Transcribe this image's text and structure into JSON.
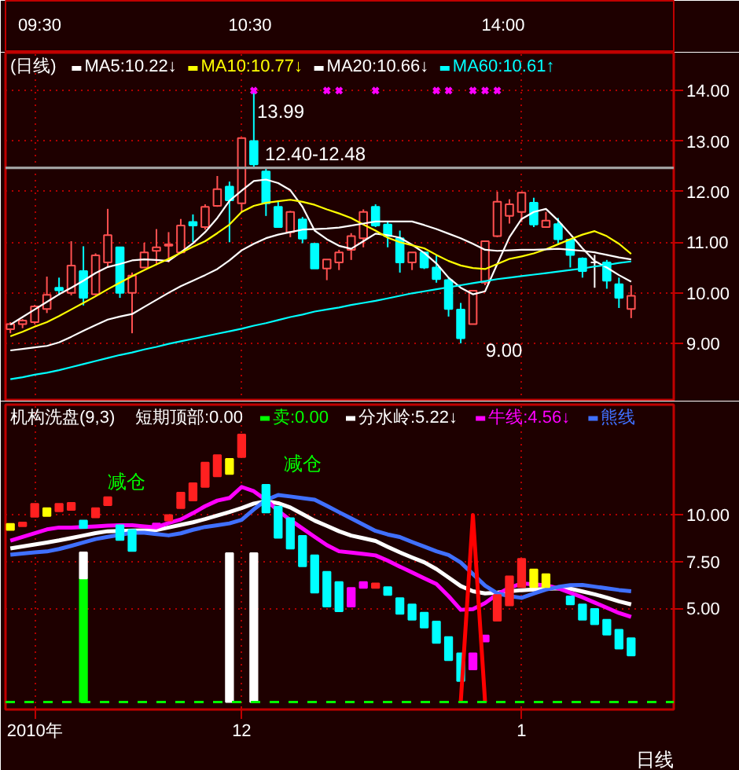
{
  "chart_data": [
    {
      "type": "candlestick",
      "title": "(日线)",
      "categories": [
        null,
        null,
        null,
        null,
        null,
        null,
        null,
        null,
        null,
        null,
        null,
        null,
        null,
        null,
        null,
        null,
        null,
        null,
        null,
        null,
        null,
        null,
        null,
        null,
        null,
        null,
        null,
        null,
        null,
        null,
        null,
        null,
        null,
        null,
        null,
        null,
        null,
        null,
        null,
        null,
        null,
        null,
        null,
        null,
        null,
        null,
        null,
        null,
        null,
        null,
        null,
        null
      ],
      "ohlc": [
        [
          9.28,
          9.42,
          9.2,
          9.38
        ],
        [
          9.38,
          9.48,
          9.3,
          9.45
        ],
        [
          9.42,
          9.76,
          9.38,
          9.73
        ],
        [
          9.68,
          10.32,
          9.6,
          9.96
        ],
        [
          10.1,
          10.3,
          9.95,
          10.05
        ],
        [
          10.0,
          11.02,
          9.95,
          10.54
        ],
        [
          10.43,
          10.92,
          9.75,
          9.9
        ],
        [
          9.97,
          10.78,
          9.95,
          10.74
        ],
        [
          10.6,
          11.66,
          10.5,
          11.14
        ],
        [
          10.9,
          10.9,
          9.9,
          10.0
        ],
        [
          10.0,
          10.4,
          9.2,
          10.34
        ],
        [
          10.5,
          10.99,
          10.5,
          10.8
        ],
        [
          10.83,
          11.26,
          10.55,
          10.9
        ],
        [
          10.93,
          11.2,
          10.6,
          10.96
        ],
        [
          10.8,
          11.46,
          10.8,
          11.33
        ],
        [
          11.4,
          11.55,
          11.0,
          11.33
        ],
        [
          11.3,
          11.75,
          11.25,
          11.7
        ],
        [
          11.72,
          12.31,
          11.7,
          12.05
        ],
        [
          12.1,
          12.2,
          11.0,
          11.83
        ],
        [
          11.77,
          13.06,
          11.6,
          13.06
        ],
        [
          13.0,
          13.99,
          12.45,
          12.54
        ],
        [
          12.4,
          12.48,
          11.52,
          11.77
        ],
        [
          11.7,
          11.8,
          11.3,
          11.3
        ],
        [
          11.2,
          11.62,
          11.1,
          11.6
        ],
        [
          11.45,
          11.5,
          10.98,
          11.07
        ],
        [
          10.97,
          10.98,
          10.48,
          10.48
        ],
        [
          10.48,
          10.66,
          10.25,
          10.66
        ],
        [
          10.6,
          10.85,
          10.45,
          10.8
        ],
        [
          10.85,
          11.18,
          10.65,
          11.12
        ],
        [
          11.08,
          11.65,
          10.9,
          11.6
        ],
        [
          11.7,
          11.75,
          11.3,
          11.33
        ],
        [
          11.35,
          11.4,
          10.9,
          11.12
        ],
        [
          11.08,
          11.23,
          10.4,
          10.6
        ],
        [
          10.6,
          10.8,
          10.45,
          10.8
        ],
        [
          10.8,
          10.8,
          10.47,
          10.5
        ],
        [
          10.5,
          10.75,
          10.2,
          10.27
        ],
        [
          10.25,
          10.3,
          9.53,
          9.68
        ],
        [
          9.67,
          9.8,
          9.0,
          9.1
        ],
        [
          9.38,
          10.04,
          9.38,
          10.04
        ],
        [
          10.2,
          11.02,
          10.15,
          11.02
        ],
        [
          11.12,
          12.0,
          11.1,
          11.8
        ],
        [
          11.52,
          11.85,
          11.37,
          11.75
        ],
        [
          11.6,
          12.0,
          11.4,
          11.98
        ],
        [
          11.78,
          11.88,
          11.3,
          11.35
        ],
        [
          11.3,
          11.6,
          11.3,
          11.43
        ],
        [
          11.36,
          11.48,
          10.95,
          11.06
        ],
        [
          11.05,
          11.05,
          10.5,
          10.75
        ],
        [
          10.68,
          10.7,
          10.3,
          10.43
        ],
        [
          10.6,
          10.75,
          10.1,
          10.6
        ],
        [
          10.6,
          10.65,
          10.08,
          10.24
        ],
        [
          10.17,
          10.3,
          9.7,
          9.9
        ],
        [
          9.68,
          10.15,
          9.5,
          9.94
        ]
      ],
      "series": [
        {
          "name": "MA5:10.22↓",
          "type": "line",
          "color": "#ffffff",
          "values": [
            9.37,
            9.52,
            9.67,
            9.82,
            9.97,
            10.1,
            10.24,
            10.39,
            10.51,
            10.57,
            10.64,
            10.66,
            10.65,
            10.63,
            10.8,
            10.98,
            11.2,
            11.48,
            11.82,
            12.02,
            12.21,
            12.24,
            12.17,
            12.03,
            11.7,
            11.23,
            11.06,
            10.93,
            10.87,
            11.02,
            11.17,
            11.14,
            11.09,
            10.95,
            10.79,
            10.58,
            10.3,
            10.1,
            9.97,
            10.03,
            10.57,
            11.1,
            11.46,
            11.6,
            11.66,
            11.43,
            11.16,
            10.88,
            10.63,
            10.5,
            10.35,
            10.22
          ]
        },
        {
          "name": "MA10:10.77↓",
          "type": "line",
          "color": "#ffff00",
          "values": [
            9.14,
            9.23,
            9.33,
            9.42,
            9.54,
            9.67,
            9.8,
            9.93,
            10.07,
            10.2,
            10.33,
            10.45,
            10.56,
            10.67,
            10.79,
            10.91,
            11.02,
            11.18,
            11.35,
            11.6,
            11.72,
            11.78,
            11.81,
            11.84,
            11.8,
            11.74,
            11.65,
            11.57,
            11.48,
            11.35,
            11.23,
            11.09,
            11.0,
            10.94,
            10.88,
            10.75,
            10.63,
            10.54,
            10.49,
            10.47,
            10.57,
            10.67,
            10.72,
            10.78,
            10.86,
            10.96,
            11.06,
            11.15,
            11.22,
            11.12,
            10.97,
            10.77
          ]
        },
        {
          "name": "MA20:10.66↓",
          "type": "line",
          "color": "#ffffff",
          "values": [
            8.86,
            8.89,
            8.92,
            8.95,
            9.02,
            9.13,
            9.25,
            9.36,
            9.47,
            9.53,
            9.58,
            9.72,
            9.86,
            10.0,
            10.13,
            10.24,
            10.35,
            10.47,
            10.64,
            10.84,
            10.97,
            11.08,
            11.15,
            11.2,
            11.25,
            11.26,
            11.27,
            11.29,
            11.33,
            11.37,
            11.41,
            11.41,
            11.41,
            11.41,
            11.34,
            11.26,
            11.17,
            11.08,
            10.97,
            10.85,
            10.83,
            10.84,
            10.85,
            10.85,
            10.86,
            10.87,
            10.85,
            10.83,
            10.8,
            10.75,
            10.7,
            10.66
          ]
        },
        {
          "name": "MA60:10.61↑",
          "type": "line",
          "color": "#00ffff",
          "values": [
            8.29,
            8.33,
            8.38,
            8.42,
            8.47,
            8.53,
            8.59,
            8.65,
            8.71,
            8.77,
            8.82,
            8.88,
            8.93,
            8.99,
            9.04,
            9.09,
            9.14,
            9.19,
            9.24,
            9.29,
            9.35,
            9.4,
            9.46,
            9.52,
            9.57,
            9.63,
            9.67,
            9.71,
            9.76,
            9.8,
            9.84,
            9.89,
            9.94,
            9.99,
            10.03,
            10.07,
            10.11,
            10.15,
            10.19,
            10.23,
            10.27,
            10.3,
            10.33,
            10.36,
            10.39,
            10.42,
            10.45,
            10.48,
            10.52,
            10.55,
            10.59,
            10.62
          ]
        },
        {
          "type": "scatter",
          "marker": "cross",
          "color": "#ff00ff",
          "values": [
            null,
            null,
            null,
            null,
            null,
            null,
            null,
            null,
            null,
            null,
            null,
            null,
            null,
            null,
            null,
            null,
            null,
            null,
            null,
            null,
            14.0,
            null,
            null,
            null,
            null,
            null,
            14.0,
            14.0,
            null,
            null,
            14.0,
            null,
            null,
            null,
            null,
            14.0,
            14.0,
            null,
            14.0,
            14.0,
            14.0,
            null,
            null,
            null,
            null,
            null,
            null,
            null,
            null,
            null,
            null,
            null
          ]
        }
      ],
      "ylim": [
        7.85,
        14.75
      ],
      "yticks": [
        {
          "value": 9,
          "label": "9.00"
        },
        {
          "value": 10,
          "label": "10.00"
        },
        {
          "value": 11,
          "label": "11.00"
        },
        {
          "value": 12,
          "label": "12.00"
        },
        {
          "value": 13,
          "label": "13.00"
        },
        {
          "value": 14,
          "label": "14.00"
        }
      ],
      "grid": true,
      "legend": "top left",
      "tick_labels": "y",
      "ref_lines": [
        {
          "axis": "y",
          "value": 12.47,
          "color": "#a0a0a0"
        }
      ],
      "annotations": [
        "09:30",
        "10:30",
        "14:00",
        "13.99",
        "12.40-12.48",
        "9.00"
      ]
    },
    {
      "type": "bar",
      "title": "机构洗盘(9,3)",
      "categories": [
        null,
        null,
        "2010年",
        null,
        null,
        null,
        null,
        null,
        null,
        null,
        null,
        null,
        null,
        null,
        null,
        null,
        null,
        null,
        null,
        "12",
        null,
        null,
        null,
        null,
        null,
        null,
        null,
        null,
        null,
        null,
        null,
        null,
        null,
        null,
        null,
        null,
        null,
        null,
        null,
        null,
        null,
        null,
        "1",
        null,
        null,
        null,
        null,
        null,
        null,
        null,
        null,
        null
      ],
      "ref_lines": [
        {
          "axis": "y",
          "value": 0,
          "label": "卖:0.00",
          "color": "#00ff00",
          "line_style": "dashed"
        }
      ],
      "series": [
        {
          "name": "分水岭:5.22↓",
          "type": "line",
          "color": "#ffffff",
          "values": [
            8.21,
            8.32,
            8.42,
            8.53,
            8.64,
            8.77,
            8.9,
            9.03,
            9.13,
            9.15,
            9.17,
            9.18,
            9.2,
            9.33,
            9.47,
            9.61,
            9.78,
            9.97,
            10.16,
            10.37,
            10.61,
            10.74,
            10.63,
            10.4,
            10.05,
            9.7,
            9.42,
            9.13,
            8.9,
            8.76,
            8.61,
            8.3,
            8.0,
            7.73,
            7.47,
            7.11,
            6.66,
            6.2,
            5.92,
            5.81,
            5.85,
            5.92,
            5.98,
            6.02,
            6.05,
            6.08,
            6.06,
            5.91,
            5.76,
            5.58,
            5.38,
            5.22
          ]
        },
        {
          "name": "牛线:4.56↓",
          "type": "line",
          "color": "#ff00ff",
          "values": [
            8.63,
            8.83,
            9.03,
            9.23,
            9.33,
            9.33,
            9.36,
            9.39,
            9.43,
            9.45,
            9.45,
            9.39,
            9.34,
            9.57,
            9.76,
            10.1,
            10.47,
            10.77,
            10.91,
            11.5,
            11.27,
            10.8,
            10.23,
            9.73,
            9.28,
            8.83,
            8.39,
            8.06,
            7.99,
            7.92,
            7.84,
            7.56,
            7.24,
            6.93,
            6.62,
            6.31,
            5.66,
            4.93,
            4.97,
            5.29,
            5.76,
            6.11,
            6.34,
            6.29,
            6.24,
            6.08,
            5.84,
            5.6,
            5.32,
            5.04,
            4.76,
            4.55
          ]
        },
        {
          "name": "熊线",
          "type": "line",
          "color": "#4070ff",
          "values": [
            7.88,
            7.94,
            8.0,
            8.05,
            8.18,
            8.35,
            8.53,
            8.71,
            8.83,
            8.94,
            9.05,
            9.05,
            8.98,
            8.91,
            9.02,
            9.21,
            9.36,
            9.45,
            9.55,
            9.74,
            10.3,
            10.8,
            11.07,
            10.99,
            10.9,
            10.82,
            10.49,
            10.15,
            9.82,
            9.48,
            9.15,
            8.96,
            8.82,
            8.56,
            8.31,
            8.06,
            7.86,
            7.46,
            6.84,
            6.22,
            5.81,
            5.66,
            5.57,
            5.8,
            6.01,
            6.15,
            6.25,
            6.26,
            6.17,
            6.08,
            5.99,
            5.92
          ]
        },
        {
          "type": "bar",
          "base": [
            9.2,
            9.4,
            9.9,
            9.95,
            10.2,
            10.27,
            9.3,
            9.87,
            10.52,
            8.66,
            8.08,
            null,
            9.4,
            9.7,
            10.37,
            10.77,
            11.5,
            12.07,
            12.19,
            13.1,
            null,
            10.13,
            8.78,
            8.2,
            7.26,
            5.85,
            5.1,
            4.85,
            5.1,
            6.1,
            6.1,
            5.72,
            4.72,
            4.4,
            3.98,
            3.16,
            2.24,
            1.12,
            1.74,
            3.23,
            4.35,
            5.17,
            6.14,
            6.14,
            6.14,
            null,
            5.22,
            4.4,
            4.16,
            3.6,
            2.86,
            2.49
          ],
          "values": [
            0.33,
            0.2,
            0.7,
            0.42,
            0.4,
            0.38,
            0.4,
            0.5,
            0.43,
            0.79,
            1.12,
            null,
            0.15,
            0.3,
            0.83,
            0.93,
            1.3,
            1.13,
            0.81,
            1.2,
            null,
            1.49,
            1.67,
            1.63,
            1.62,
            1.99,
            1.86,
            1.57,
            1.0,
            0.32,
            0.24,
            0.42,
            0.83,
            0.82,
            0.8,
            1.14,
            1.24,
            1.48,
            0.86,
            0.33,
            1.37,
            1.55,
            1.52,
            0.95,
            0.7,
            null,
            0.43,
            0.82,
            0.82,
            0.8,
            1.0,
            0.92
          ],
          "colors": [
            "#ffff00",
            "#ff2020",
            "#ff2020",
            "#ffff00",
            "#ff2020",
            "#ff2020",
            "#00ffff",
            "#ff2020",
            "#ff2020",
            "#00ffff",
            "#00ffff",
            null,
            "#ff00ff",
            "#ff2020",
            "#ff2020",
            "#ff2020",
            "#ff2020",
            "#ff2020",
            "#ffff00",
            "#ff2020",
            null,
            "#00ffff",
            "#00ffff",
            "#00ffff",
            "#00ffff",
            "#00ffff",
            "#00ffff",
            "#00ffff",
            "#ff00ff",
            "#ff00ff",
            "#ff2020",
            "#00ffff",
            "#00ffff",
            "#00ffff",
            "#00ffff",
            "#00ffff",
            "#00ffff",
            "#00ffff",
            "#ff00ff",
            "#ff00ff",
            "#ff2020",
            "#ff2020",
            "#ff2020",
            "#ffff00",
            "#ffff00",
            null,
            "#00ffff",
            "#00ffff",
            "#00ffff",
            "#00ffff",
            "#00ffff",
            "#00ffff"
          ]
        },
        {
          "type": "bar",
          "color": "#00ff00",
          "values": [
            null,
            null,
            null,
            null,
            null,
            null,
            6.6,
            null,
            null,
            null,
            null,
            null,
            null,
            null,
            null,
            null,
            null,
            null,
            null,
            null,
            null,
            null,
            null,
            null,
            null,
            null,
            null,
            null,
            null,
            null,
            null,
            null,
            null,
            null,
            null,
            null,
            null,
            null,
            null,
            null,
            null,
            null,
            null,
            null,
            null,
            null,
            null,
            null,
            null,
            null,
            null,
            null
          ]
        },
        {
          "type": "bar",
          "color": "#ffffff",
          "base": [
            null,
            null,
            null,
            null,
            null,
            null,
            6.6,
            null,
            null,
            null,
            null,
            null,
            null,
            null,
            null,
            null,
            null,
            null,
            0,
            null,
            0,
            null,
            null,
            null,
            null,
            null,
            null,
            null,
            null,
            null,
            null,
            null,
            null,
            null,
            null,
            null,
            null,
            null,
            null,
            null,
            null,
            null,
            null,
            null,
            null,
            null,
            null,
            null,
            null,
            null,
            null,
            null
          ],
          "values": [
            null,
            null,
            null,
            null,
            null,
            null,
            1.4,
            null,
            null,
            null,
            null,
            null,
            null,
            null,
            null,
            null,
            null,
            null,
            7.96,
            null,
            7.96,
            null,
            null,
            null,
            null,
            null,
            null,
            null,
            null,
            null,
            null,
            null,
            null,
            null,
            null,
            null,
            null,
            null,
            null,
            null,
            null,
            null,
            null,
            null,
            null,
            null,
            null,
            null,
            null,
            null,
            null,
            null
          ]
        },
        {
          "type": "line",
          "color": "#ff0000",
          "values": [
            null,
            null,
            null,
            null,
            null,
            null,
            null,
            null,
            null,
            null,
            null,
            null,
            null,
            null,
            null,
            null,
            null,
            null,
            null,
            null,
            null,
            null,
            null,
            null,
            null,
            null,
            null,
            null,
            null,
            null,
            null,
            null,
            null,
            null,
            null,
            null,
            null,
            0,
            10.0,
            0,
            null,
            null,
            null,
            null,
            null,
            null,
            null,
            null,
            null,
            null,
            null,
            null
          ]
        }
      ],
      "ylim": [
        -0.4,
        15.9
      ],
      "yticks": [
        {
          "value": 5,
          "label": "5.00"
        },
        {
          "value": 7.5,
          "label": "7.50"
        },
        {
          "value": 10,
          "label": "10.00"
        }
      ],
      "grid": true,
      "legend": "top",
      "annotations": [
        "短期顶部:0.00",
        "减仓",
        "减仓",
        "日线"
      ]
    }
  ]
}
